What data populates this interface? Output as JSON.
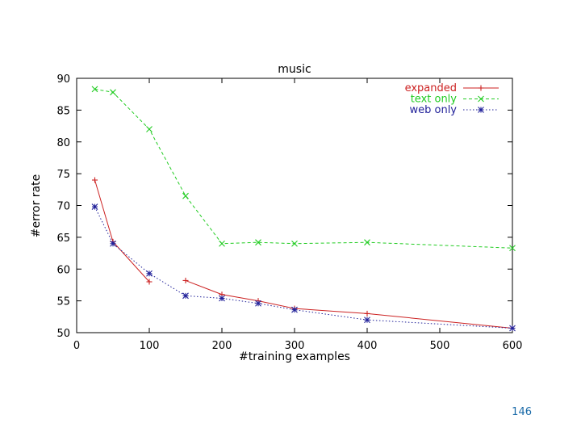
{
  "chart_data": {
    "type": "line",
    "title": "music",
    "xlabel": "#training examples",
    "ylabel": "#error rate",
    "xlim": [
      0,
      600
    ],
    "ylim": [
      50,
      90
    ],
    "xticks": [
      0,
      100,
      200,
      300,
      400,
      500,
      600
    ],
    "yticks": [
      50,
      55,
      60,
      65,
      70,
      75,
      80,
      85,
      90
    ],
    "legend_position": "top-right",
    "series": [
      {
        "name": "expanded",
        "color": "#cc2222",
        "marker": "+",
        "dash": "solid",
        "segments": [
          [
            [
              25,
              74
            ],
            [
              50,
              64.3
            ],
            [
              100,
              58
            ]
          ],
          [
            [
              150,
              58.2
            ],
            [
              200,
              56
            ],
            [
              250,
              55
            ],
            [
              300,
              53.8
            ],
            [
              400,
              53
            ],
            [
              600,
              50.7
            ]
          ]
        ]
      },
      {
        "name": "text only",
        "color": "#22cc22",
        "marker": "x",
        "dash": "dashed",
        "segments": [
          [
            [
              25,
              88.3
            ],
            [
              50,
              87.8
            ],
            [
              100,
              82
            ],
            [
              150,
              71.5
            ],
            [
              200,
              64
            ],
            [
              250,
              64.2
            ],
            [
              300,
              64
            ],
            [
              400,
              64.2
            ],
            [
              600,
              63.3
            ]
          ]
        ]
      },
      {
        "name": "web only",
        "color": "#22229a",
        "marker": "*",
        "dash": "dotted",
        "segments": [
          [
            [
              25,
              69.8
            ],
            [
              50,
              64
            ],
            [
              100,
              59.3
            ],
            [
              150,
              55.8
            ],
            [
              200,
              55.4
            ],
            [
              250,
              54.6
            ],
            [
              300,
              53.6
            ],
            [
              400,
              52
            ],
            [
              600,
              50.7
            ]
          ]
        ]
      }
    ]
  },
  "footer": {
    "page_number": "146"
  }
}
